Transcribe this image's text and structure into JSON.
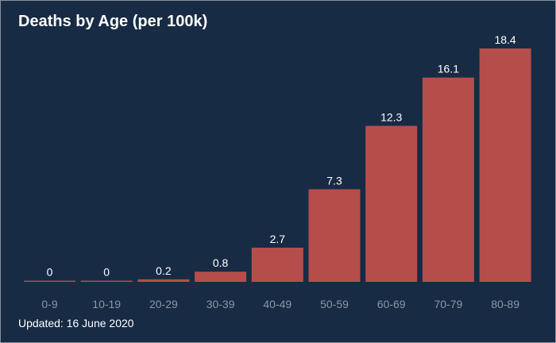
{
  "chart_data": {
    "type": "bar",
    "title": "Deaths by Age (per 100k)",
    "categories": [
      "0-9",
      "10-19",
      "20-29",
      "30-39",
      "40-49",
      "50-59",
      "60-69",
      "70-79",
      "80-89"
    ],
    "values": [
      0,
      0,
      0.2,
      0.8,
      2.7,
      7.3,
      12.3,
      16.1,
      18.4
    ],
    "data_labels": [
      "0",
      "0",
      "0.2",
      "0.8",
      "2.7",
      "7.3",
      "12.3",
      "16.1",
      "18.4"
    ],
    "xlabel": "",
    "ylabel": "",
    "ylim": [
      0,
      18.4
    ],
    "grid": false,
    "legend": "none"
  },
  "footer": {
    "updated": "Updated: 16 June 2020"
  },
  "colors": {
    "background": "#172b45",
    "bar": "#b54e4a",
    "data_label": "#ffffff",
    "tick_label": "#8c96a3"
  }
}
